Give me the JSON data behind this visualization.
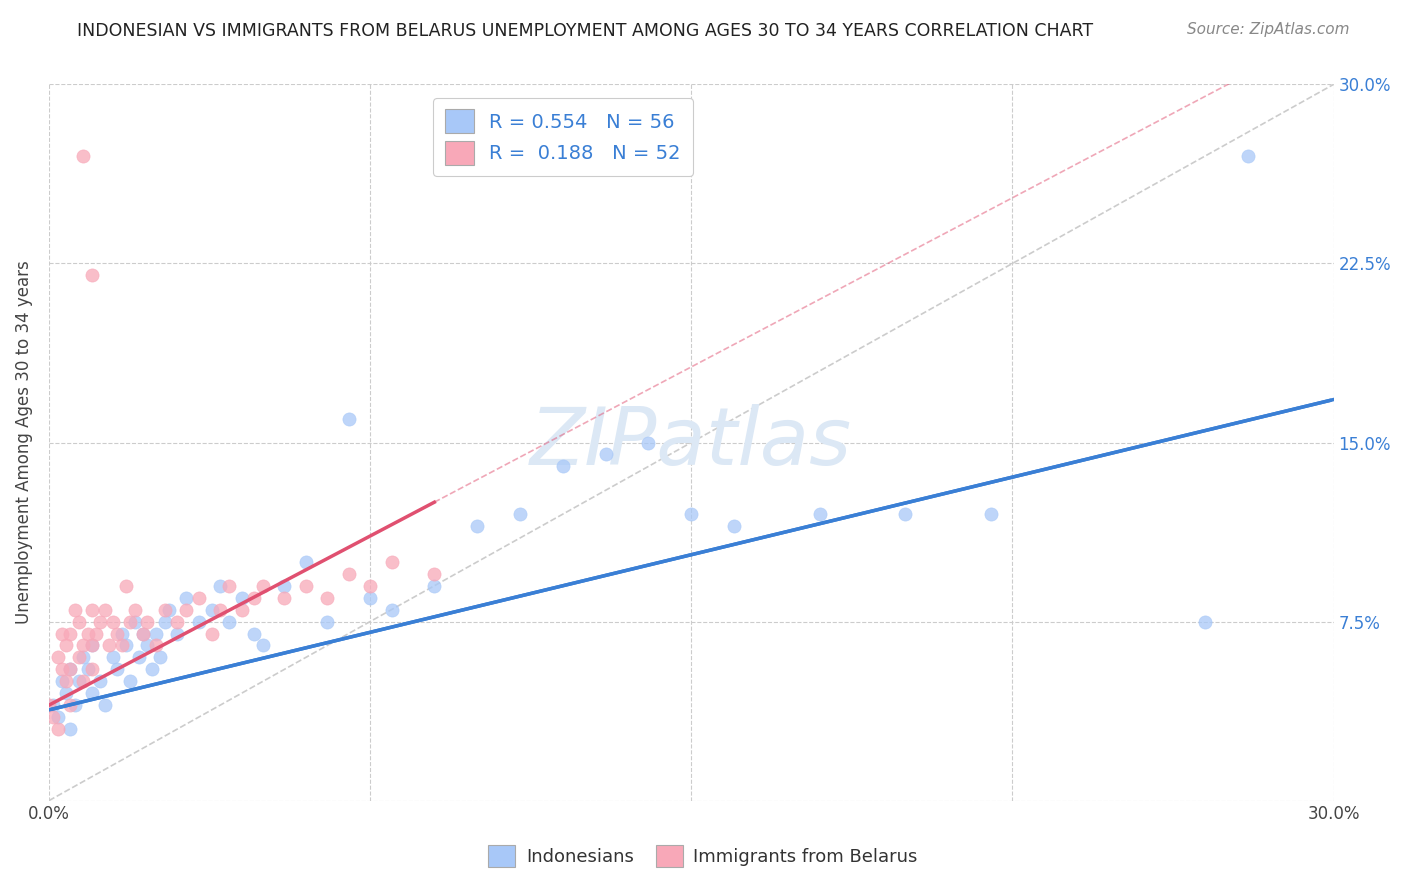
{
  "title": "INDONESIAN VS IMMIGRANTS FROM BELARUS UNEMPLOYMENT AMONG AGES 30 TO 34 YEARS CORRELATION CHART",
  "source": "Source: ZipAtlas.com",
  "ylabel": "Unemployment Among Ages 30 to 34 years",
  "xlim": [
    0.0,
    0.3
  ],
  "ylim": [
    0.0,
    0.3
  ],
  "ytick_labels_right": [
    "7.5%",
    "15.0%",
    "22.5%",
    "30.0%"
  ],
  "ytick_vals_right": [
    0.075,
    0.15,
    0.225,
    0.3
  ],
  "xtick_labels": [
    "0.0%",
    "30.0%"
  ],
  "xtick_vals": [
    0.0,
    0.3
  ],
  "indonesian_color": "#a8c8f8",
  "belarus_color": "#f8a8b8",
  "indonesian_R": 0.554,
  "indonesian_N": 56,
  "belarus_R": 0.188,
  "belarus_N": 52,
  "indonesian_line_color": "#3a7fd5",
  "belarus_line_color": "#e05070",
  "diagonal_color": "#cccccc",
  "grid_color": "#cccccc",
  "watermark_color": "#dce8f5",
  "indo_x": [
    0.001,
    0.002,
    0.003,
    0.004,
    0.005,
    0.005,
    0.006,
    0.007,
    0.008,
    0.009,
    0.01,
    0.01,
    0.012,
    0.013,
    0.015,
    0.016,
    0.017,
    0.018,
    0.019,
    0.02,
    0.021,
    0.022,
    0.023,
    0.024,
    0.025,
    0.026,
    0.027,
    0.028,
    0.03,
    0.032,
    0.035,
    0.038,
    0.04,
    0.042,
    0.045,
    0.048,
    0.05,
    0.055,
    0.06,
    0.065,
    0.07,
    0.075,
    0.08,
    0.09,
    0.1,
    0.11,
    0.12,
    0.13,
    0.14,
    0.15,
    0.16,
    0.18,
    0.2,
    0.22,
    0.27,
    0.28
  ],
  "indo_y": [
    0.04,
    0.035,
    0.05,
    0.045,
    0.055,
    0.03,
    0.04,
    0.05,
    0.06,
    0.055,
    0.045,
    0.065,
    0.05,
    0.04,
    0.06,
    0.055,
    0.07,
    0.065,
    0.05,
    0.075,
    0.06,
    0.07,
    0.065,
    0.055,
    0.07,
    0.06,
    0.075,
    0.08,
    0.07,
    0.085,
    0.075,
    0.08,
    0.09,
    0.075,
    0.085,
    0.07,
    0.065,
    0.09,
    0.1,
    0.075,
    0.16,
    0.085,
    0.08,
    0.09,
    0.115,
    0.12,
    0.14,
    0.145,
    0.15,
    0.12,
    0.115,
    0.12,
    0.12,
    0.12,
    0.075,
    0.27
  ],
  "bel_x": [
    0.0,
    0.001,
    0.002,
    0.002,
    0.003,
    0.003,
    0.004,
    0.004,
    0.005,
    0.005,
    0.005,
    0.006,
    0.007,
    0.007,
    0.008,
    0.008,
    0.009,
    0.01,
    0.01,
    0.01,
    0.011,
    0.012,
    0.013,
    0.014,
    0.015,
    0.016,
    0.017,
    0.018,
    0.019,
    0.02,
    0.022,
    0.023,
    0.025,
    0.027,
    0.03,
    0.032,
    0.035,
    0.038,
    0.04,
    0.042,
    0.045,
    0.048,
    0.05,
    0.055,
    0.06,
    0.065,
    0.07,
    0.075,
    0.08,
    0.09,
    0.008,
    0.01
  ],
  "bel_y": [
    0.04,
    0.035,
    0.03,
    0.06,
    0.055,
    0.07,
    0.05,
    0.065,
    0.04,
    0.055,
    0.07,
    0.08,
    0.06,
    0.075,
    0.065,
    0.05,
    0.07,
    0.055,
    0.065,
    0.08,
    0.07,
    0.075,
    0.08,
    0.065,
    0.075,
    0.07,
    0.065,
    0.09,
    0.075,
    0.08,
    0.07,
    0.075,
    0.065,
    0.08,
    0.075,
    0.08,
    0.085,
    0.07,
    0.08,
    0.09,
    0.08,
    0.085,
    0.09,
    0.085,
    0.09,
    0.085,
    0.095,
    0.09,
    0.1,
    0.095,
    0.27,
    0.22
  ],
  "indo_line_x0": 0.0,
  "indo_line_y0": 0.038,
  "indo_line_x1": 0.3,
  "indo_line_y1": 0.168,
  "bel_line_x0": 0.0,
  "bel_line_y0": 0.04,
  "bel_line_x1": 0.09,
  "bel_line_y1": 0.125
}
